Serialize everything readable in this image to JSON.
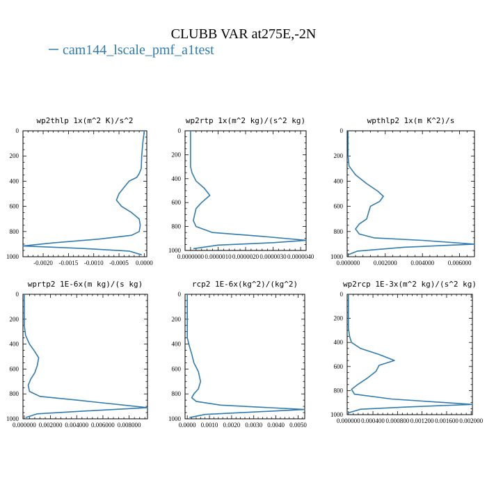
{
  "figure": {
    "title": "CLUBB VAR at275E,-2N",
    "legend": {
      "label": "cam144_lscale_pmf_a1test",
      "color": "#2f7bb0"
    }
  },
  "chart_data": [
    {
      "type": "line",
      "title": "wp2thlp   1x(m^2 K)/s^2",
      "ylim": [
        1000,
        0
      ],
      "yticks": [
        "0",
        "200",
        "400",
        "600",
        "800",
        "1000"
      ],
      "xlim": [
        -0.0024,
        5e-05
      ],
      "xticks": [
        -0.002,
        -0.0015,
        -0.001,
        -0.0005,
        0.0
      ],
      "xtick_labels": [
        "-0.0020",
        "-0.0015",
        "-0.0010",
        "-0.0005",
        "0.0000"
      ],
      "series": [
        {
          "color": "#2f7bb0",
          "x": [
            0.0,
            -3e-05,
            -5e-05,
            -6e-05,
            -0.0001,
            -0.00015,
            -0.0003,
            -0.0004,
            -0.0005,
            -0.00055,
            -0.00045,
            -0.00025,
            -0.0001,
            -8e-05,
            -0.0001,
            -0.00025,
            -0.0009,
            -0.0018,
            -0.0024,
            -0.0012,
            -0.0003,
            -5e-05
          ],
          "y": [
            0,
            100,
            200,
            300,
            340,
            370,
            400,
            450,
            500,
            550,
            600,
            650,
            700,
            750,
            800,
            830,
            860,
            890,
            915,
            935,
            955,
            985
          ]
        }
      ]
    },
    {
      "type": "line",
      "title": "wp2rtp   1x(m^2 kg)/(s^2 kg)",
      "ylim": [
        1000,
        0
      ],
      "yticks": [
        "0",
        "200",
        "400",
        "600",
        "800",
        "1000"
      ],
      "xlim": [
        -2e-07,
        4.2e-06
      ],
      "xticks": [
        0.0,
        1e-06,
        2e-06,
        3e-06,
        4e-06
      ],
      "xtick_labels": [
        "0.0000000",
        "0.0000010",
        "0.0000020",
        "0.0000030",
        "0.0000040"
      ],
      "series": [
        {
          "color": "#2f7bb0",
          "x": [
            0.0,
            0.0,
            0.0,
            5e-08,
            2e-07,
            5e-07,
            7e-07,
            4e-07,
            2e-07,
            1.5e-07,
            1e-07,
            2e-07,
            8e-07,
            2.5e-06,
            4.2e-06,
            3e-06,
            1e-06,
            1e-07
          ],
          "y": [
            0,
            200,
            300,
            350,
            420,
            480,
            540,
            600,
            650,
            700,
            750,
            800,
            850,
            880,
            915,
            935,
            955,
            985
          ]
        }
      ]
    },
    {
      "type": "line",
      "title": "wpthlp2   1x(m K^2)/s",
      "ylim": [
        1000,
        0
      ],
      "yticks": [
        "0",
        "200",
        "400",
        "600",
        "800",
        "1000"
      ],
      "xlim": [
        -5e-05,
        0.0068
      ],
      "xticks": [
        0.0,
        0.002,
        0.004,
        0.006
      ],
      "xtick_labels": [
        "0.000000",
        "0.002000",
        "0.004000",
        "0.006000"
      ],
      "series": [
        {
          "color": "#2f7bb0",
          "x": [
            0.0,
            0.0,
            5e-05,
            0.0004,
            0.001,
            0.0016,
            0.0019,
            0.0017,
            0.0012,
            0.0011,
            0.001,
            0.0006,
            0.0004,
            0.0006,
            0.0014,
            0.004,
            0.0068,
            0.003,
            0.0005,
            0.0
          ],
          "y": [
            0,
            200,
            280,
            350,
            420,
            480,
            520,
            560,
            600,
            650,
            700,
            740,
            780,
            820,
            850,
            870,
            900,
            925,
            955,
            985
          ]
        }
      ]
    },
    {
      "type": "line",
      "title": "wprtp2   1E-6x(m kg)/(s kg)",
      "ylim": [
        1000,
        0
      ],
      "yticks": [
        "0",
        "200",
        "400",
        "600",
        "800",
        "1000"
      ],
      "xlim": [
        -0.0001,
        0.0094
      ],
      "xticks": [
        0.0,
        0.002,
        0.004,
        0.006,
        0.008
      ],
      "xtick_labels": [
        "0.000000",
        "0.002000",
        "0.004000",
        "0.006000",
        "0.008000"
      ],
      "series": [
        {
          "color": "#2f7bb0",
          "x": [
            0.0,
            0.0,
            0.0001,
            0.0004,
            0.0008,
            0.0011,
            0.001,
            0.0008,
            0.0005,
            0.0003,
            0.0004,
            0.0012,
            0.004,
            0.0094,
            0.005,
            0.001,
            0.0001
          ],
          "y": [
            0,
            250,
            330,
            400,
            460,
            510,
            570,
            630,
            680,
            730,
            780,
            820,
            850,
            910,
            935,
            960,
            990
          ]
        }
      ]
    },
    {
      "type": "line",
      "title": "rcp2   1E-6x(kg^2)/(kg^2)",
      "ylim": [
        1000,
        0
      ],
      "yticks": [
        "0",
        "200",
        "400",
        "600",
        "800",
        "1000"
      ],
      "xlim": [
        -0.0001,
        0.0053
      ],
      "xticks": [
        0.0,
        0.001,
        0.002,
        0.003,
        0.004,
        0.005
      ],
      "xtick_labels": [
        "0.0000",
        "0.0010",
        "0.0020",
        "0.0030",
        "0.0040",
        "0.0050"
      ],
      "series": [
        {
          "color": "#2f7bb0",
          "x": [
            0.0,
            0.0,
            0.0001,
            0.0002,
            0.0003,
            0.0005,
            0.0006,
            0.0005,
            0.0003,
            0.0002,
            0.0004,
            0.0015,
            0.0053,
            0.003,
            0.0008,
            0.0001
          ],
          "y": [
            0,
            350,
            420,
            480,
            550,
            620,
            700,
            760,
            800,
            830,
            860,
            890,
            925,
            945,
            965,
            990
          ]
        }
      ]
    },
    {
      "type": "line",
      "title": "wp2rcp   1E-3x(m^2 kg)/(s^2 kg)",
      "ylim": [
        1000,
        0
      ],
      "yticks": [
        "0",
        "200",
        "400",
        "600",
        "800",
        "1000"
      ],
      "xlim": [
        -2e-05,
        0.00202
      ],
      "xticks": [
        0.0,
        0.0004,
        0.0008,
        0.0012,
        0.0016,
        0.002
      ],
      "xtick_labels": [
        "0.000000",
        "0.000400",
        "0.000800",
        "0.001200",
        "0.001600",
        "0.002000"
      ],
      "series": [
        {
          "color": "#2f7bb0",
          "x": [
            0.0,
            0.0,
            2e-05,
            5e-05,
            0.0002,
            0.0005,
            0.00075,
            0.0005,
            0.00045,
            0.0003,
            0.00015,
            5e-05,
            0.0001,
            0.0007,
            0.00202,
            0.001,
            0.0002,
            0.0
          ],
          "y": [
            0,
            280,
            350,
            400,
            450,
            500,
            550,
            590,
            640,
            700,
            750,
            790,
            830,
            870,
            915,
            935,
            955,
            985
          ]
        }
      ]
    }
  ]
}
